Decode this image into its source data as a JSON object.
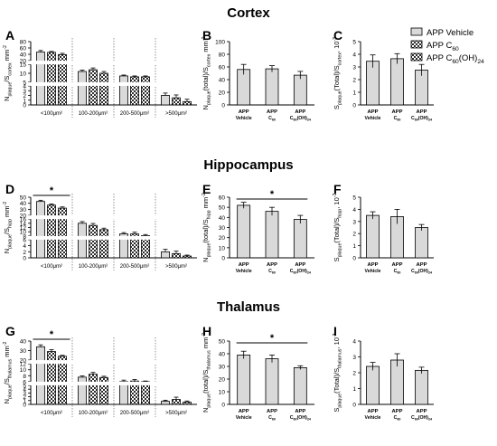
{
  "figure": {
    "sections": [
      "Cortex",
      "Hippocampus",
      "Thalamus"
    ],
    "legend": [
      {
        "name": "APP Vehicle",
        "pattern": "solid",
        "sub": ""
      },
      {
        "name": "APP C",
        "pattern": "checker",
        "sub": "60"
      },
      {
        "name": "APP C",
        "pattern": "checker",
        "sub": "60",
        "tail": "(OH)",
        "sub2": "24"
      }
    ]
  },
  "colors": {
    "bar_fill": "#d9d9d9",
    "checker_dark": "#2b2b2b",
    "stroke": "#000000"
  },
  "chart_data": [
    {
      "panel": "A",
      "type": "bar",
      "section": "Cortex",
      "ylabel": {
        "main": "N",
        "s1": "plaque",
        "mid": "/S",
        "s2": "cortex",
        "unit": " mm",
        "sup": "-2"
      },
      "categories": [
        "<100μm²",
        "100-200μm²",
        "200-500μm²",
        ">500μm²"
      ],
      "series": [
        {
          "name": "APP Vehicle",
          "values": [
            47,
            11,
            8.5,
            2.0
          ],
          "errors": [
            5,
            0.8,
            0.5,
            0.5
          ]
        },
        {
          "name": "APP C60",
          "values": [
            46,
            12,
            8.0,
            1.5
          ],
          "errors": [
            3,
            1.0,
            0.5,
            0.6
          ]
        },
        {
          "name": "APP C60(OH)24",
          "values": [
            39,
            10,
            8.0,
            0.7
          ],
          "errors": [
            4,
            1.0,
            0.5,
            0.5
          ]
        }
      ],
      "axis_segments": [
        {
          "ticks": [
            0,
            1,
            2,
            3,
            4
          ]
        },
        {
          "ticks": [
            5,
            10,
            15
          ]
        },
        {
          "ticks": [
            20,
            40,
            60,
            80
          ]
        }
      ],
      "significance": null
    },
    {
      "panel": "B",
      "type": "bar",
      "section": "Cortex",
      "ylabel": {
        "main": "N",
        "s1": "plaque",
        "mid": "(total)/S",
        "s2": "cortex",
        "unit": " mm",
        "sup": "-2"
      },
      "categories": [
        "APP|Vehicle",
        "APP|C60",
        "APP|C60(OH)24"
      ],
      "values": [
        56,
        57,
        47
      ],
      "errors": [
        8,
        5,
        6
      ],
      "ylim": [
        0,
        100
      ],
      "yticks": [
        0,
        20,
        40,
        60,
        80,
        100
      ],
      "significance": null
    },
    {
      "panel": "C",
      "type": "bar",
      "section": "Cortex",
      "ylabel": {
        "main": "S",
        "s1": "plaque",
        "mid": "(Total)/S",
        "s2": "cortex",
        "unit": ", 10",
        "sup": "-3"
      },
      "categories": [
        "APP|Vehicle",
        "APP|C60",
        "APP|C60(OH)24"
      ],
      "values": [
        3.45,
        3.65,
        2.75
      ],
      "errors": [
        0.5,
        0.4,
        0.45
      ],
      "ylim": [
        0,
        5
      ],
      "yticks": [
        0,
        1,
        2,
        3,
        4,
        5
      ],
      "significance": null
    },
    {
      "panel": "D",
      "type": "bar",
      "section": "Hippocampus",
      "ylabel": {
        "main": "N",
        "s1": "plaque",
        "mid": "/S",
        "s2": "hipp",
        "unit": " mm",
        "sup": "-2"
      },
      "categories": [
        "<100μm²",
        "100-200μm²",
        "200-500μm²",
        ">500μm²"
      ],
      "series": [
        {
          "name": "APP Vehicle",
          "values": [
            43,
            14,
            9.0,
            2.0
          ],
          "errors": [
            2,
            0.8,
            0.6,
            0.8
          ]
        },
        {
          "name": "APP C60",
          "values": [
            37,
            13,
            9.0,
            1.4
          ],
          "errors": [
            2,
            0.9,
            0.8,
            0.8
          ]
        },
        {
          "name": "APP C60(OH)24",
          "values": [
            32,
            11,
            8.2,
            0.6
          ],
          "errors": [
            2,
            0.7,
            0.5,
            0.3
          ]
        }
      ],
      "axis_segments": [
        {
          "ticks": [
            0,
            2,
            4,
            6
          ]
        },
        {
          "ticks": [
            8,
            10,
            12,
            14,
            16
          ]
        },
        {
          "ticks": [
            20,
            30,
            40,
            50
          ]
        }
      ],
      "significance": {
        "label": "*",
        "from_series": 0,
        "to_series": 2,
        "category": 0
      }
    },
    {
      "panel": "E",
      "type": "bar",
      "section": "Hippocampus",
      "ylabel": {
        "main": "N",
        "s1": "plaque",
        "mid": "(total)/S",
        "s2": "hipp",
        "unit": " mm",
        "sup": "-2"
      },
      "categories": [
        "APP|Vehicle",
        "APP|C60",
        "APP|C60(OH)24"
      ],
      "values": [
        52,
        46,
        38
      ],
      "errors": [
        3,
        4,
        4
      ],
      "ylim": [
        0,
        60
      ],
      "yticks": [
        0,
        10,
        20,
        30,
        40,
        50,
        60
      ],
      "significance": {
        "label": "*",
        "from": 0,
        "to": 2
      }
    },
    {
      "panel": "F",
      "type": "bar",
      "section": "Hippocampus",
      "ylabel": {
        "main": "S",
        "s1": "plaque",
        "mid": "(Total)/S",
        "s2": "hipp",
        "unit": ", 10",
        "sup": "-3"
      },
      "categories": [
        "APP|Vehicle",
        "APP|C60",
        "APP|C60(OH)24"
      ],
      "values": [
        3.5,
        3.4,
        2.5
      ],
      "errors": [
        0.3,
        0.6,
        0.25
      ],
      "ylim": [
        0,
        5
      ],
      "yticks": [
        0,
        1,
        2,
        3,
        4,
        5
      ],
      "significance": null
    },
    {
      "panel": "G",
      "type": "bar",
      "section": "Thalamus",
      "ylabel": {
        "main": "N",
        "s1": "plaque",
        "mid": "/S",
        "s2": "thalamus",
        "unit": " mm",
        "sup": "-2"
      },
      "categories": [
        "<100μm²",
        "100-200μm²",
        "200-500μm²",
        ">500μm²"
      ],
      "series": [
        {
          "name": "APP Vehicle",
          "values": [
            34,
            7.5,
            6.0,
            0.8
          ],
          "errors": [
            2,
            0.4,
            0.5,
            0.3
          ]
        },
        {
          "name": "APP C60",
          "values": [
            29,
            8.5,
            6.2,
            1.3
          ],
          "errors": [
            2,
            0.6,
            0.5,
            0.6
          ]
        },
        {
          "name": "APP C60(OH)24",
          "values": [
            24,
            7.4,
            5.8,
            0.6
          ],
          "errors": [
            1,
            0.4,
            0.4,
            0.3
          ]
        }
      ],
      "axis_segments": [
        {
          "ticks": [
            0,
            1,
            2,
            3,
            4,
            5
          ]
        },
        {
          "ticks": [
            6,
            8,
            10,
            12
          ]
        },
        {
          "ticks": [
            20,
            30,
            40
          ]
        }
      ],
      "significance": {
        "label": "*",
        "from_series": 0,
        "to_series": 2,
        "category": 0
      }
    },
    {
      "panel": "H",
      "type": "bar",
      "section": "Thalamus",
      "ylabel": {
        "main": "N",
        "s1": "plaque",
        "mid": "(total)/S",
        "s2": "thalamus",
        "unit": " mm",
        "sup": "-2"
      },
      "categories": [
        "APP|Vehicle",
        "APP|C60",
        "APP|C60(OH)24"
      ],
      "values": [
        39,
        36,
        29
      ],
      "errors": [
        3,
        3,
        1.5
      ],
      "ylim": [
        0,
        50
      ],
      "yticks": [
        0,
        10,
        20,
        30,
        40,
        50
      ],
      "significance": {
        "label": "*",
        "from": 0,
        "to": 2
      }
    },
    {
      "panel": "I",
      "type": "bar",
      "section": "Thalamus",
      "ylabel": {
        "main": "S",
        "s1": "plaque",
        "mid": "(Total)/S",
        "s2": "thalamus",
        "unit": ", 10",
        "sup": "-3"
      },
      "categories": [
        "APP|Vehicle",
        "APP|C60",
        "APP|C60(OH)24"
      ],
      "values": [
        2.4,
        2.8,
        2.15
      ],
      "errors": [
        0.25,
        0.4,
        0.2
      ],
      "ylim": [
        0,
        4
      ],
      "yticks": [
        0,
        1,
        2,
        3,
        4
      ],
      "significance": null
    }
  ]
}
